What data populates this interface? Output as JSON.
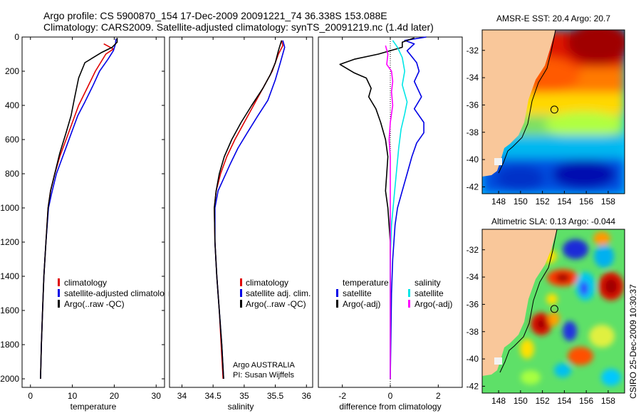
{
  "header": {
    "line1": "Argo profile: CS 5900870_154 17-Dec-2009 20091221_74 36.338S 153.088E",
    "line2": "Climatology: CARS2009. Satellite-adjusted climatology: synTS_20091219.nc (1.4d later)"
  },
  "colors": {
    "climatology": "#e00000",
    "satellite": "#0000e6",
    "argo": "#000000",
    "sal_satellite": "#00e6e6",
    "sal_argo": "#ff00ff",
    "land": "#f9c79a"
  },
  "icons": {
    "float_marker": "circle-marker-icon"
  },
  "chart_data": [
    {
      "id": "temperature",
      "type": "line",
      "xlabel": "temperature",
      "xlim": [
        -2,
        32
      ],
      "xticks": [
        0,
        10,
        20,
        30
      ],
      "ylim": [
        0,
        2050
      ],
      "yticks": [
        0,
        200,
        400,
        600,
        800,
        1000,
        1200,
        1400,
        1600,
        1800,
        2000
      ],
      "legend": [
        "climatology",
        "satellite-adjusted climatology",
        "Argo(..raw -QC)"
      ],
      "legend_position": "bottom-right",
      "series": [
        {
          "name": "climatology",
          "color_key": "climatology",
          "points": [
            [
              17.5,
              40
            ],
            [
              19.8,
              70
            ],
            [
              18,
              100
            ],
            [
              15.5,
              200
            ],
            [
              13.5,
              300
            ],
            [
              11.5,
              400
            ],
            [
              10,
              500
            ],
            [
              8.5,
              600
            ],
            [
              7,
              700
            ],
            [
              5.8,
              800
            ],
            [
              4.8,
              900
            ],
            [
              4.2,
              1000
            ],
            [
              3.7,
              1200
            ],
            [
              3.2,
              1400
            ],
            [
              2.9,
              1600
            ],
            [
              2.6,
              1800
            ],
            [
              2.4,
              2000
            ]
          ]
        },
        {
          "name": "satellite-adjusted climatology",
          "color_key": "satellite",
          "points": [
            [
              20.4,
              10
            ],
            [
              20.3,
              40
            ],
            [
              19.8,
              80
            ],
            [
              18.5,
              130
            ],
            [
              16.5,
              200
            ],
            [
              15,
              280
            ],
            [
              13,
              380
            ],
            [
              11.3,
              460
            ],
            [
              9.5,
              580
            ],
            [
              8,
              680
            ],
            [
              6.2,
              800
            ],
            [
              5,
              920
            ],
            [
              4.3,
              1000
            ],
            [
              3.7,
              1200
            ],
            [
              3.2,
              1400
            ],
            [
              2.9,
              1600
            ],
            [
              2.6,
              1800
            ],
            [
              2.4,
              2000
            ]
          ]
        },
        {
          "name": "Argo(..raw -QC)",
          "color_key": "argo",
          "points": [
            [
              20.7,
              5
            ],
            [
              20.7,
              30
            ],
            [
              19.5,
              60
            ],
            [
              17,
              90
            ],
            [
              13,
              150
            ],
            [
              11.5,
              240
            ],
            [
              10.5,
              360
            ],
            [
              9.7,
              460
            ],
            [
              8.5,
              560
            ],
            [
              7,
              680
            ],
            [
              5.8,
              800
            ],
            [
              4.8,
              900
            ],
            [
              4.2,
              1000
            ],
            [
              3.7,
              1200
            ],
            [
              3.2,
              1400
            ],
            [
              2.9,
              1600
            ],
            [
              2.6,
              1800
            ],
            [
              2.4,
              2000
            ]
          ]
        }
      ]
    },
    {
      "id": "salinity",
      "type": "line",
      "xlabel": "salinity",
      "xlim": [
        33.8,
        36.1
      ],
      "xticks": [
        34,
        34.5,
        35,
        35.5,
        36
      ],
      "ylim": [
        0,
        2050
      ],
      "legend": [
        "climatology",
        "satellite adj. clim.",
        "Argo(..raw -QC)"
      ],
      "legend_position": "bottom-right",
      "annotations": [
        "Argo AUSTRALIA",
        "PI: Susan Wijffels"
      ],
      "series": [
        {
          "name": "climatology",
          "color_key": "climatology",
          "points": [
            [
              35.6,
              20
            ],
            [
              35.62,
              50
            ],
            [
              35.55,
              100
            ],
            [
              35.45,
              200
            ],
            [
              35.3,
              300
            ],
            [
              35.15,
              400
            ],
            [
              35.0,
              500
            ],
            [
              34.85,
              600
            ],
            [
              34.72,
              700
            ],
            [
              34.62,
              800
            ],
            [
              34.55,
              900
            ],
            [
              34.52,
              1000
            ],
            [
              34.53,
              1200
            ],
            [
              34.56,
              1400
            ],
            [
              34.6,
              1600
            ],
            [
              34.63,
              1800
            ],
            [
              34.66,
              2000
            ]
          ]
        },
        {
          "name": "satellite adj. clim.",
          "color_key": "satellite",
          "points": [
            [
              35.62,
              20
            ],
            [
              35.65,
              60
            ],
            [
              35.58,
              150
            ],
            [
              35.5,
              250
            ],
            [
              35.38,
              370
            ],
            [
              35.22,
              460
            ],
            [
              35.05,
              560
            ],
            [
              34.9,
              650
            ],
            [
              34.78,
              740
            ],
            [
              34.68,
              820
            ],
            [
              34.58,
              900
            ],
            [
              34.53,
              1000
            ],
            [
              34.53,
              1200
            ],
            [
              34.56,
              1400
            ],
            [
              34.6,
              1600
            ],
            [
              34.64,
              1800
            ],
            [
              34.67,
              2000
            ]
          ]
        },
        {
          "name": "Argo(..raw -QC)",
          "color_key": "argo",
          "points": [
            [
              35.6,
              20
            ],
            [
              35.55,
              80
            ],
            [
              35.5,
              150
            ],
            [
              35.42,
              220
            ],
            [
              35.3,
              300
            ],
            [
              35.12,
              400
            ],
            [
              34.95,
              500
            ],
            [
              34.8,
              600
            ],
            [
              34.68,
              700
            ],
            [
              34.6,
              800
            ],
            [
              34.55,
              900
            ],
            [
              34.52,
              1000
            ],
            [
              34.53,
              1200
            ],
            [
              34.56,
              1400
            ],
            [
              34.6,
              1600
            ],
            [
              34.64,
              1800
            ],
            [
              34.67,
              2000
            ]
          ]
        }
      ]
    },
    {
      "id": "difference",
      "type": "line",
      "xlabel": "difference from climatology",
      "xlim": [
        -3,
        3
      ],
      "xticks": [
        -2,
        0,
        2
      ],
      "ylim": [
        0,
        2050
      ],
      "legend_headers": [
        "temperature",
        "salinity"
      ],
      "legend": [
        "satellite",
        "Argo(-adj)",
        "satellite",
        "Argo(-adj)"
      ],
      "legend_position": "bottom-center",
      "series": [
        {
          "name": "temperature satellite",
          "color_key": "satellite",
          "points": [
            [
              1.5,
              0
            ],
            [
              0.6,
              20
            ],
            [
              1.0,
              40
            ],
            [
              0.7,
              80
            ],
            [
              1.1,
              150
            ],
            [
              1.2,
              200
            ],
            [
              1.0,
              260
            ],
            [
              1.3,
              350
            ],
            [
              1.0,
              420
            ],
            [
              1.4,
              500
            ],
            [
              1.4,
              560
            ],
            [
              1.1,
              620
            ],
            [
              0.9,
              700
            ],
            [
              0.7,
              800
            ],
            [
              0.5,
              900
            ],
            [
              0.3,
              1000
            ],
            [
              0.2,
              1100
            ],
            [
              0.1,
              1300
            ],
            [
              0.05,
              1500
            ],
            [
              0.02,
              1800
            ],
            [
              0,
              2000
            ]
          ]
        },
        {
          "name": "temperature Argo(-adj)",
          "color_key": "argo",
          "points": [
            [
              1.0,
              5
            ],
            [
              0.5,
              30
            ],
            [
              0.5,
              60
            ],
            [
              -0.5,
              100
            ],
            [
              -1.5,
              130
            ],
            [
              -2.1,
              160
            ],
            [
              -1.5,
              210
            ],
            [
              -1.0,
              240
            ],
            [
              -0.8,
              300
            ],
            [
              -0.9,
              350
            ],
            [
              -0.6,
              420
            ],
            [
              -0.4,
              500
            ],
            [
              -0.2,
              600
            ],
            [
              -0.1,
              700
            ],
            [
              -0.15,
              800
            ],
            [
              -0.2,
              900
            ],
            [
              -0.1,
              1000
            ],
            [
              0,
              1200
            ],
            [
              0,
              2000
            ]
          ]
        },
        {
          "name": "salinity satellite",
          "color_key": "sal_satellite",
          "points": [
            [
              0.1,
              20
            ],
            [
              0.3,
              60
            ],
            [
              0.5,
              120
            ],
            [
              0.6,
              200
            ],
            [
              0.5,
              280
            ],
            [
              0.7,
              380
            ],
            [
              0.6,
              450
            ],
            [
              0.45,
              540
            ],
            [
              0.35,
              650
            ],
            [
              0.25,
              800
            ],
            [
              0.15,
              950
            ],
            [
              0.05,
              1100
            ],
            [
              0,
              1300
            ],
            [
              0,
              2000
            ]
          ]
        },
        {
          "name": "salinity Argo(-adj)",
          "color_key": "sal_argo",
          "points": [
            [
              -0.2,
              50
            ],
            [
              -0.1,
              100
            ],
            [
              -0.15,
              160
            ],
            [
              0.05,
              200
            ],
            [
              0.1,
              260
            ],
            [
              0.05,
              320
            ],
            [
              0.1,
              400
            ],
            [
              0.0,
              500
            ],
            [
              -0.05,
              600
            ],
            [
              0,
              700
            ],
            [
              0,
              2000
            ]
          ]
        }
      ]
    },
    {
      "id": "sst_map",
      "type": "heatmap",
      "title": "AMSR-E SST: 20.4 Argo: 20.7",
      "xlim": [
        146.5,
        159.5
      ],
      "ylim": [
        -42.5,
        -30.5
      ],
      "xticks": [
        148,
        150,
        152,
        154,
        156,
        158
      ],
      "yticks": [
        -32,
        -34,
        -36,
        -38,
        -40,
        -42
      ],
      "marker": {
        "lon": 153.088,
        "lat": -36.338
      }
    },
    {
      "id": "sla_map",
      "type": "heatmap",
      "title": "Altimetric SLA: 0.13 Argo: -0.044",
      "xlim": [
        146.5,
        159.5
      ],
      "ylim": [
        -42.5,
        -30.5
      ],
      "xticks": [
        148,
        150,
        152,
        154,
        156,
        158
      ],
      "yticks": [
        -32,
        -34,
        -36,
        -38,
        -40,
        -42
      ],
      "marker": {
        "lon": 153.088,
        "lat": -36.338
      }
    }
  ],
  "footer": {
    "stamp": "CSIRO 25-Dec-2009 10:30:37"
  }
}
